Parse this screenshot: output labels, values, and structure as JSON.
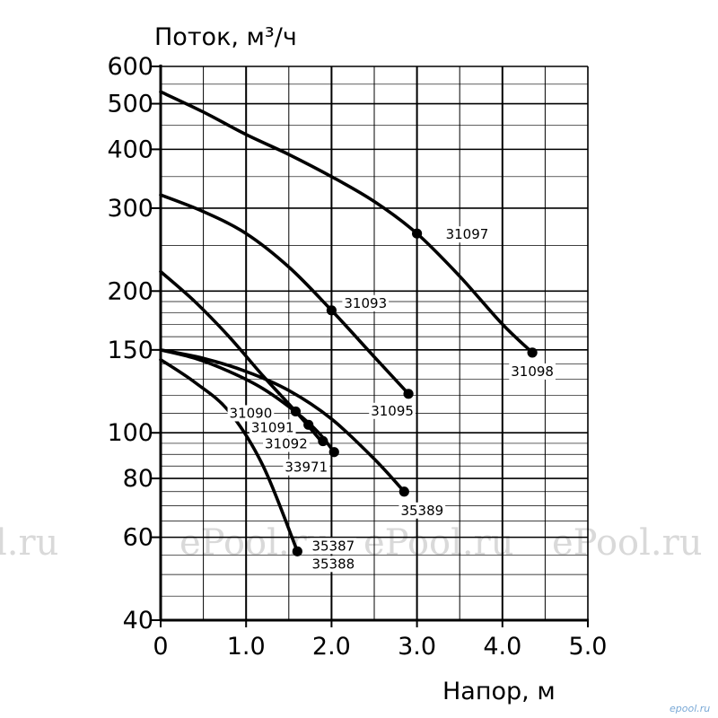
{
  "chart_data": {
    "type": "line",
    "ylabel": "Поток, м³/ч",
    "xlabel": "Напор, м",
    "xlim": [
      0,
      5
    ],
    "ylim": [
      40,
      600
    ],
    "yscale": "log",
    "grid": true,
    "x_ticks": [
      {
        "value": 0,
        "label": "0"
      },
      {
        "value": 1,
        "label": "1.0"
      },
      {
        "value": 2,
        "label": "2.0"
      },
      {
        "value": 3,
        "label": "3.0"
      },
      {
        "value": 4,
        "label": "4.0"
      },
      {
        "value": 5,
        "label": "5.0"
      }
    ],
    "y_ticks": [
      {
        "value": 40,
        "label": "40"
      },
      {
        "value": 60,
        "label": "60"
      },
      {
        "value": 80,
        "label": "80"
      },
      {
        "value": 100,
        "label": "100"
      },
      {
        "value": 150,
        "label": "150"
      },
      {
        "value": 200,
        "label": "200"
      },
      {
        "value": 300,
        "label": "300"
      },
      {
        "value": 400,
        "label": "400"
      },
      {
        "value": 500,
        "label": "500"
      },
      {
        "value": 600,
        "label": "600"
      }
    ],
    "series": [
      {
        "x": [
          0,
          0.5,
          1.0,
          1.5,
          2.0,
          2.5,
          3.0,
          3.5,
          4.0,
          4.35
        ],
        "y": [
          530,
          480,
          430,
          390,
          350,
          310,
          265,
          215,
          170,
          148
        ]
      },
      {
        "x": [
          0,
          0.5,
          1.0,
          1.5,
          2.0,
          2.5,
          2.9
        ],
        "y": [
          320,
          295,
          265,
          225,
          182,
          145,
          121
        ]
      },
      {
        "x": [
          0,
          0.4,
          0.8,
          1.2,
          1.6,
          1.9
        ],
        "y": [
          220,
          190,
          160,
          132,
          110,
          95
        ]
      },
      {
        "x": [
          0,
          0.4,
          0.8,
          1.2,
          1.6,
          1.85,
          2.03
        ],
        "y": [
          150,
          144,
          135,
          124,
          110,
          100,
          91
        ]
      },
      {
        "x": [
          0,
          0.5,
          1.0,
          1.5,
          2.0,
          2.5,
          2.85
        ],
        "y": [
          150,
          144,
          135,
          123,
          107,
          88,
          75
        ]
      },
      {
        "x": [
          0,
          0.4,
          0.8,
          1.2,
          1.6
        ],
        "y": [
          143,
          128,
          111,
          85,
          56
        ]
      }
    ],
    "points": [
      {
        "x": 3.0,
        "y": 265,
        "label": "31097"
      },
      {
        "x": 4.35,
        "y": 148,
        "label": "31098"
      },
      {
        "x": 2.0,
        "y": 182,
        "label": "31093"
      },
      {
        "x": 2.9,
        "y": 121,
        "label": "31095"
      },
      {
        "x": 1.58,
        "y": 111,
        "label": "31090"
      },
      {
        "x": 1.73,
        "y": 104,
        "label": "31091"
      },
      {
        "x": 1.9,
        "y": 96,
        "label": "31092"
      },
      {
        "x": 2.03,
        "y": 91,
        "label": "33971"
      },
      {
        "x": 2.85,
        "y": 75,
        "label": "35389"
      },
      {
        "x": 1.6,
        "y": 56,
        "label": "35387"
      }
    ],
    "extra_labels": [
      {
        "text": "35388",
        "x": 1.6,
        "y": 56
      }
    ]
  },
  "watermarks": [
    "l.ru",
    "ePool.ru",
    "ePool.ru",
    "ePool.ru"
  ],
  "corner_mark": "epool.ru"
}
